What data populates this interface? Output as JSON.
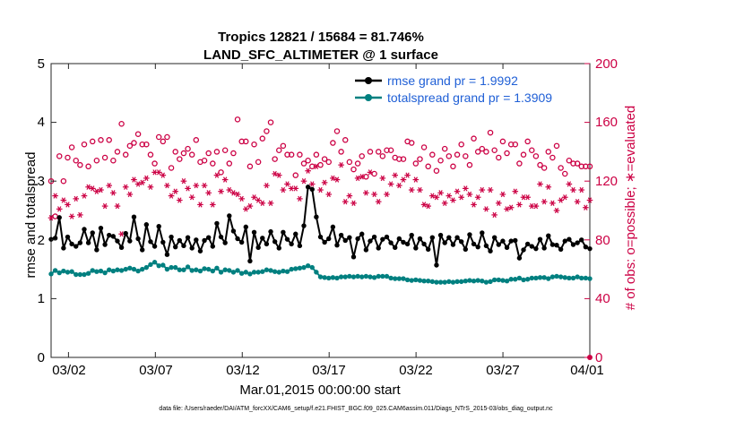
{
  "chart_data": {
    "type": "line",
    "title": "Tropics 12821 / 15684 = 81.746%",
    "subtitle": "LAND_SFC_ALTIMETER @ 1 surface",
    "xlabel": "Mar.01,2015 00:00:00 start",
    "ylabel_left": "rmse and totalspread",
    "ylabel_right": "# of obs: o=possible; ∗=evaluated",
    "x_start_day": 1,
    "x_end_day": 32,
    "xlim": [
      1,
      32
    ],
    "ylim_left": [
      0,
      5
    ],
    "ylim_right": [
      0,
      200
    ],
    "x_ticks": [
      {
        "day": 2,
        "label": "03/02"
      },
      {
        "day": 7,
        "label": "03/07"
      },
      {
        "day": 12,
        "label": "03/12"
      },
      {
        "day": 17,
        "label": "03/17"
      },
      {
        "day": 22,
        "label": "03/22"
      },
      {
        "day": 27,
        "label": "03/27"
      },
      {
        "day": 32,
        "label": "04/01"
      }
    ],
    "y_ticks_left": [
      "0",
      "1",
      "2",
      "3",
      "4",
      "5"
    ],
    "y_ticks_right": [
      "0",
      "40",
      "80",
      "120",
      "160",
      "200"
    ],
    "legend": [
      {
        "label": "rmse grand pr = 1.9992",
        "color": "#000000"
      },
      {
        "label": "totalspread grand pr = 1.3909",
        "color": "#008080"
      }
    ],
    "footnote": "data file: /Users/raeder/DAI/ATM_forcXX/CAM6_setup/f.e21.FHIST_BGC.f09_025.CAM6assim.011/Diags_NTrS_2015-03/obs_diag_output.nc",
    "series": [
      {
        "name": "rmse",
        "axis": "left",
        "color": "#000000",
        "marker": "dot",
        "values": [
          2.01,
          2.03,
          2.38,
          1.86,
          2.05,
          1.93,
          1.89,
          1.95,
          2.18,
          1.95,
          2.12,
          1.83,
          2.2,
          1.92,
          2.08,
          2.06,
          1.98,
          1.87,
          2.11,
          1.98,
          2.39,
          2.02,
          1.83,
          2.26,
          1.97,
          1.89,
          2.23,
          1.96,
          1.75,
          2.05,
          1.88,
          1.99,
          1.9,
          2.04,
          1.86,
          2.0,
          1.81,
          1.99,
          2.04,
          1.89,
          2.28,
          2.05,
          1.95,
          2.41,
          2.15,
          2.02,
          1.96,
          2.22,
          1.64,
          2.13,
          1.87,
          2.03,
          1.93,
          2.14,
          1.97,
          1.86,
          2.13,
          2.01,
          1.93,
          2.1,
          1.9,
          2.24,
          2.9,
          2.86,
          2.39,
          2.05,
          1.96,
          2.02,
          2.22,
          1.91,
          2.08,
          1.99,
          2.04,
          1.71,
          2.02,
          2.1,
          1.83,
          1.98,
          2.05,
          1.86,
          2.01,
          2.05,
          1.95,
          1.87,
          2.02,
          1.96,
          1.93,
          2.08,
          1.86,
          2.02,
          1.93,
          1.84,
          2.04,
          1.57,
          2.08,
          1.95,
          2.04,
          1.92,
          2.04,
          1.97,
          1.84,
          2.09,
          1.93,
          1.88,
          2.12,
          1.9,
          1.81,
          2.04,
          1.92,
          1.98,
          1.87,
          1.98,
          1.99,
          1.69,
          1.83,
          1.93,
          1.89,
          1.85,
          2.01,
          1.86,
          2.07,
          1.92,
          1.91,
          1.84,
          1.98,
          2.01,
          1.92,
          1.95,
          2.0,
          1.88,
          1.85
        ]
      },
      {
        "name": "totalspread",
        "axis": "left",
        "color": "#008080",
        "marker": "dot",
        "values": [
          1.42,
          1.48,
          1.44,
          1.47,
          1.45,
          1.46,
          1.41,
          1.41,
          1.41,
          1.43,
          1.48,
          1.46,
          1.47,
          1.44,
          1.49,
          1.47,
          1.49,
          1.48,
          1.5,
          1.52,
          1.5,
          1.47,
          1.5,
          1.53,
          1.58,
          1.62,
          1.56,
          1.57,
          1.5,
          1.53,
          1.53,
          1.49,
          1.49,
          1.54,
          1.48,
          1.49,
          1.47,
          1.51,
          1.5,
          1.47,
          1.52,
          1.45,
          1.49,
          1.48,
          1.45,
          1.48,
          1.43,
          1.45,
          1.42,
          1.45,
          1.45,
          1.46,
          1.49,
          1.48,
          1.46,
          1.45,
          1.47,
          1.46,
          1.5,
          1.51,
          1.52,
          1.53,
          1.56,
          1.53,
          1.45,
          1.37,
          1.36,
          1.35,
          1.36,
          1.35,
          1.37,
          1.37,
          1.38,
          1.37,
          1.38,
          1.37,
          1.38,
          1.37,
          1.36,
          1.38,
          1.38,
          1.38,
          1.35,
          1.34,
          1.34,
          1.34,
          1.32,
          1.31,
          1.32,
          1.31,
          1.3,
          1.3,
          1.29,
          1.28,
          1.28,
          1.28,
          1.29,
          1.28,
          1.29,
          1.29,
          1.3,
          1.31,
          1.3,
          1.31,
          1.3,
          1.28,
          1.29,
          1.32,
          1.32,
          1.31,
          1.3,
          1.33,
          1.33,
          1.35,
          1.32,
          1.33,
          1.35,
          1.35,
          1.36,
          1.36,
          1.34,
          1.37,
          1.38,
          1.37,
          1.36,
          1.35,
          1.35,
          1.37,
          1.35,
          1.35,
          1.34
        ]
      },
      {
        "name": "possible",
        "axis": "right",
        "color": "#cc0044",
        "marker": "circle",
        "values": [
          120,
          96,
          137,
          120,
          136,
          143,
          134,
          131,
          145,
          130,
          147,
          134,
          148,
          136,
          148,
          134,
          140,
          159,
          138,
          144,
          146,
          152,
          145,
          145,
          138,
          132,
          150,
          147,
          150,
          129,
          140,
          135,
          139,
          142,
          138,
          148,
          133,
          134,
          139,
          132,
          140,
          126,
          141,
          132,
          139,
          162,
          147,
          147,
          130,
          145,
          133,
          149,
          154,
          160,
          135,
          141,
          144,
          138,
          138,
          124,
          138,
          132,
          134,
          130,
          138,
          131,
          135,
          133,
          146,
          154,
          140,
          148,
          133,
          128,
          132,
          137,
          123,
          140,
          125,
          140,
          137,
          141,
          141,
          136,
          135,
          135,
          147,
          146,
          132,
          135,
          143,
          130,
          138,
          127,
          134,
          142,
          137,
          130,
          138,
          145,
          137,
          131,
          149,
          140,
          142,
          140,
          153,
          141,
          136,
          147,
          139,
          145,
          145,
          132,
          138,
          147,
          141,
          137,
          131,
          129,
          140,
          136,
          144,
          129,
          125,
          134,
          132,
          132,
          130,
          130,
          130
        ]
      },
      {
        "name": "evaluated",
        "axis": "right",
        "color": "#cc0044",
        "marker": "star",
        "values": [
          95,
          110,
          101,
          107,
          104,
          96,
          108,
          97,
          110,
          116,
          115,
          113,
          114,
          103,
          117,
          112,
          103,
          84,
          116,
          111,
          121,
          118,
          119,
          122,
          116,
          126,
          126,
          124,
          117,
          110,
          113,
          107,
          120,
          115,
          109,
          117,
          104,
          117,
          112,
          104,
          124,
          113,
          121,
          114,
          112,
          111,
          108,
          101,
          103,
          109,
          107,
          105,
          117,
          105,
          125,
          124,
          114,
          118,
          115,
          115,
          108,
          120,
          127,
          118,
          130,
          114,
          119,
          111,
          122,
          121,
          131,
          106,
          110,
          105,
          122,
          123,
          112,
          126,
          111,
          106,
          122,
          111,
          118,
          124,
          117,
          121,
          124,
          114,
          121,
          114,
          104,
          103,
          110,
          109,
          112,
          105,
          110,
          107,
          113,
          109,
          115,
          111,
          104,
          109,
          114,
          101,
          114,
          97,
          105,
          111,
          101,
          102,
          113,
          104,
          109,
          109,
          103,
          103,
          118,
          106,
          116,
          105,
          100,
          107,
          109,
          118,
          114,
          106,
          114,
          102,
          107
        ]
      }
    ]
  }
}
